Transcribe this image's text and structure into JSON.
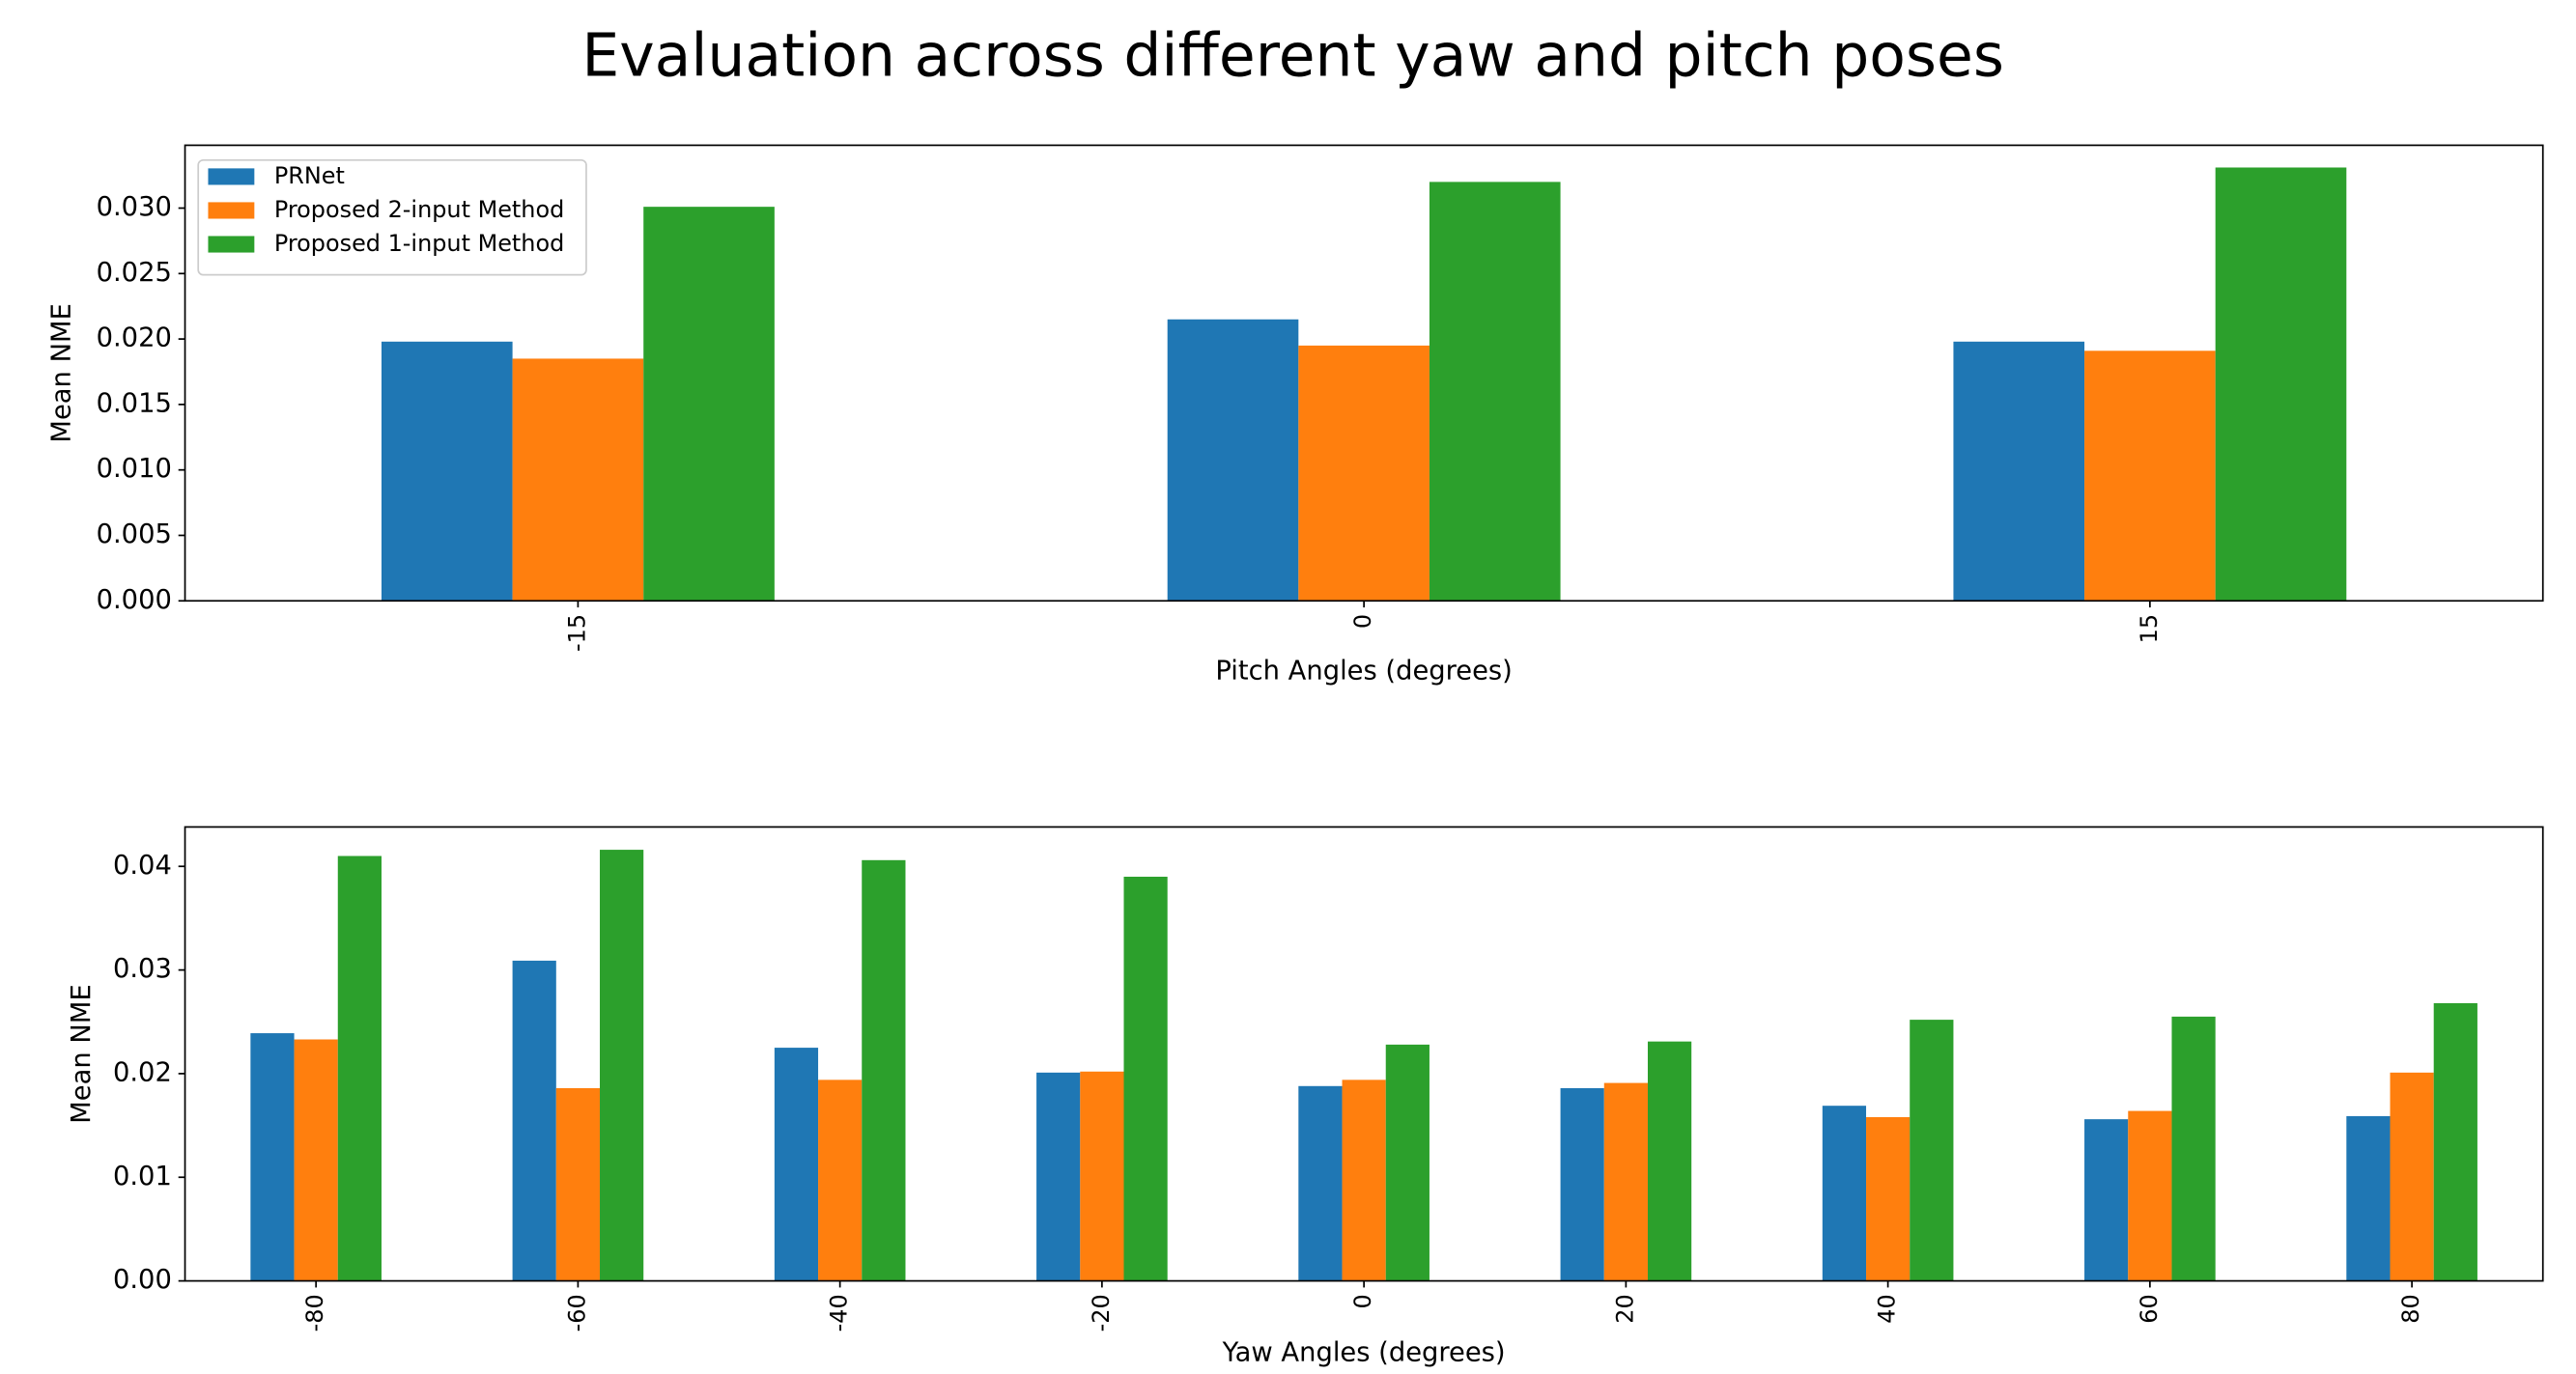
{
  "title": "Evaluation across different yaw and pitch poses",
  "chart_data": [
    {
      "type": "bar",
      "xlabel": "Pitch Angles (degrees)",
      "ylabel": "Mean NME",
      "categories": [
        "-15",
        "0",
        "15"
      ],
      "series": [
        {
          "name": "PRNet",
          "color": "#1f77b4",
          "values": [
            0.0198,
            0.0215,
            0.0198
          ]
        },
        {
          "name": "Proposed 2-input Method",
          "color": "#ff7f0e",
          "values": [
            0.0185,
            0.0195,
            0.0191
          ]
        },
        {
          "name": "Proposed 1-input Method",
          "color": "#2ca02c",
          "values": [
            0.0301,
            0.032,
            0.0331
          ]
        }
      ],
      "ylim": [
        0,
        0.0348
      ],
      "yticks": [
        {
          "value": 0,
          "label": "0.000"
        },
        {
          "value": 0.005,
          "label": "0.005"
        },
        {
          "value": 0.01,
          "label": "0.010"
        },
        {
          "value": 0.015,
          "label": "0.015"
        },
        {
          "value": 0.02,
          "label": "0.020"
        },
        {
          "value": 0.025,
          "label": "0.025"
        },
        {
          "value": 0.03,
          "label": "0.030"
        }
      ],
      "legend": "upper left"
    },
    {
      "type": "bar",
      "xlabel": "Yaw Angles (degrees)",
      "ylabel": "Mean NME",
      "categories": [
        "-80",
        "-60",
        "-40",
        "-20",
        "0",
        "20",
        "40",
        "60",
        "80"
      ],
      "series": [
        {
          "color": "#1f77b4",
          "values": [
            0.0239,
            0.0309,
            0.0225,
            0.0201,
            0.0188,
            0.0186,
            0.0169,
            0.0156,
            0.0159
          ]
        },
        {
          "color": "#ff7f0e",
          "values": [
            0.0233,
            0.0186,
            0.0194,
            0.0202,
            0.0194,
            0.0191,
            0.0158,
            0.0164,
            0.0201
          ]
        },
        {
          "color": "#2ca02c",
          "values": [
            0.041,
            0.0416,
            0.0406,
            0.039,
            0.0228,
            0.0231,
            0.0252,
            0.0255,
            0.0268
          ]
        }
      ],
      "ylim": [
        0,
        0.0438
      ],
      "yticks": [
        {
          "value": 0,
          "label": "0.00"
        },
        {
          "value": 0.01,
          "label": "0.01"
        },
        {
          "value": 0.02,
          "label": "0.02"
        },
        {
          "value": 0.03,
          "label": "0.03"
        },
        {
          "value": 0.04,
          "label": "0.04"
        }
      ]
    }
  ]
}
